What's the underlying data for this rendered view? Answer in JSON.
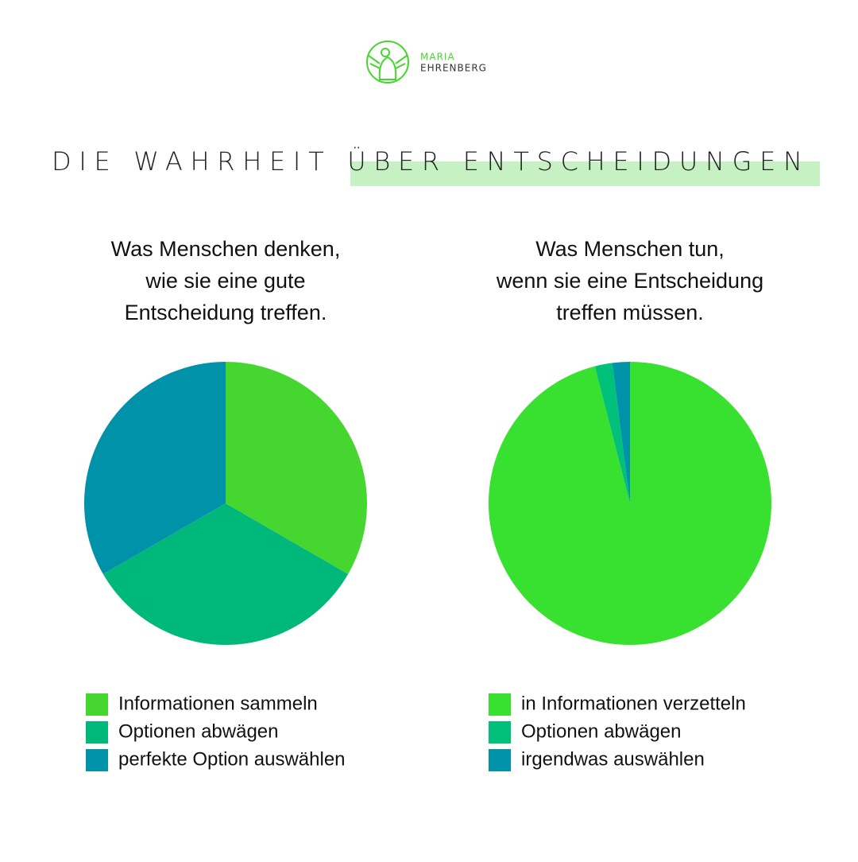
{
  "logo": {
    "line1": "MARIA",
    "line2": "EHRENBERG"
  },
  "headline": "DIE WAHRHEIT ÜBER ENTSCHEIDUNGEN",
  "chart_data": [
    {
      "type": "pie",
      "title": [
        "Was Menschen denken,",
        "wie sie eine gute",
        "Entscheidung treffen."
      ],
      "categories": [
        "Informationen sammeln",
        "Optionen abwägen",
        "perfekte Option auswählen"
      ],
      "values": [
        33.3,
        33.3,
        33.3
      ],
      "colors": [
        "#46d630",
        "#00b87a",
        "#0092a9"
      ]
    },
    {
      "type": "pie",
      "title": [
        "Was Menschen tun,",
        "wenn sie eine Entscheidung",
        "treffen müssen."
      ],
      "categories": [
        "in Informationen verzetteln",
        "Optionen abwägen",
        "irgendwas auswählen"
      ],
      "values": [
        96,
        2,
        2
      ],
      "colors": [
        "#38e030",
        "#00c07a",
        "#0092a9"
      ]
    }
  ]
}
